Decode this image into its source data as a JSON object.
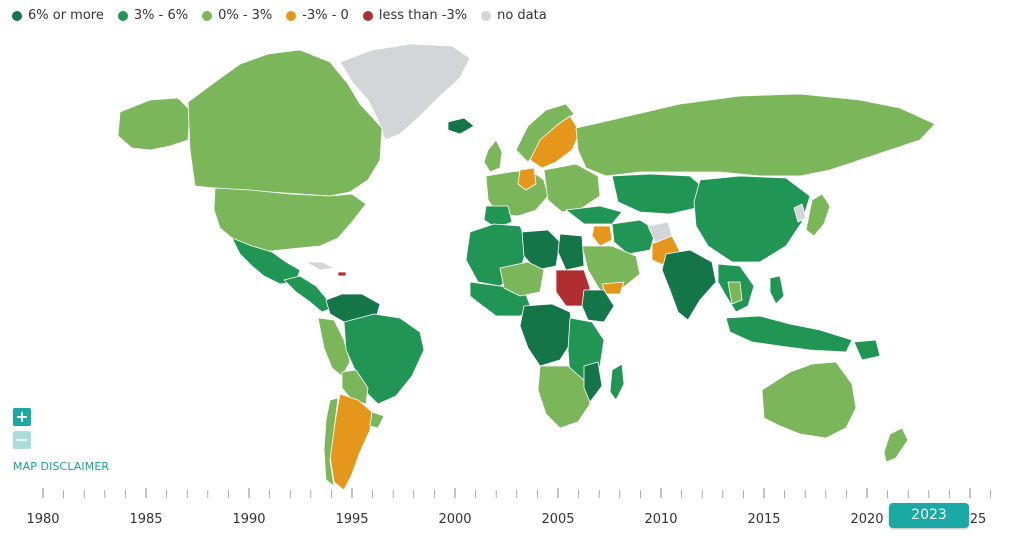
{
  "legend": {
    "items": [
      {
        "label": "6% or more",
        "color": "#137548"
      },
      {
        "label": "3% - 6%",
        "color": "#219654"
      },
      {
        "label": "0% - 3%",
        "color": "#7cb65a"
      },
      {
        "label": "-3% - 0",
        "color": "#e5971b"
      },
      {
        "label": "less than -3%",
        "color": "#b02d30"
      },
      {
        "label": "no data",
        "color": "#d3d5d8"
      }
    ]
  },
  "controls": {
    "zoom_in_label": "+",
    "zoom_out_label": "−",
    "disclaimer_label": "MAP DISCLAIMER"
  },
  "timeline": {
    "years": [
      "1980",
      "1985",
      "1990",
      "1995",
      "2000",
      "2005",
      "2010",
      "2015",
      "2020",
      "25"
    ],
    "selected_year": "2023"
  },
  "colors": {
    "accent": "#1aa9a5",
    "accent_light": "#a9dedb",
    "border": "#ffffff"
  }
}
